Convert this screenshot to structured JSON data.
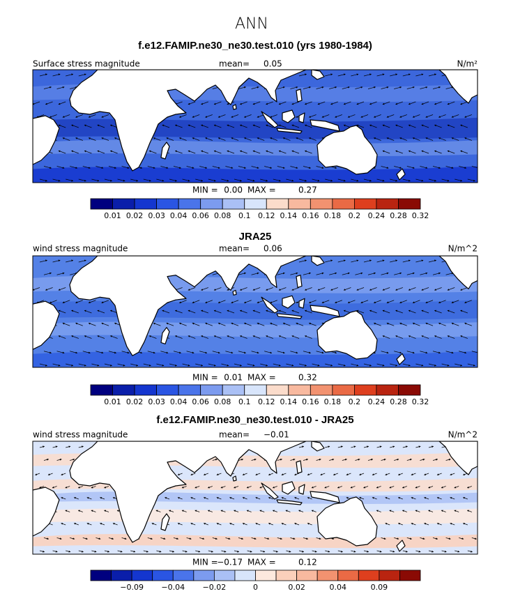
{
  "title": "ANN",
  "panels": [
    {
      "title": "f.e12.FAMIP.ne30_ne30.test.010 (yrs 1980-1984)",
      "left_label": "Surface stress magnitude",
      "mean_label": "mean=",
      "mean": "0.05",
      "units": "N/m²",
      "min_label": "MIN =",
      "min": "0.00",
      "max_label": "MAX =",
      "max": "0.27",
      "colorbar": {
        "colors": [
          "#00007f",
          "#0a1eaa",
          "#1436cf",
          "#2a55e3",
          "#4a74ea",
          "#7c9bef",
          "#aac0f5",
          "#d8e5fb",
          "#fbdccb",
          "#f8b99f",
          "#f29270",
          "#ea6a45",
          "#de3f1e",
          "#b92410",
          "#8a0a04"
        ],
        "labels": [
          "0.01",
          "0.02",
          "0.03",
          "0.04",
          "0.06",
          "0.08",
          "0.1",
          "0.12",
          "0.14",
          "0.16",
          "0.18",
          "0.2",
          "0.24",
          "0.28",
          "0.32"
        ]
      }
    },
    {
      "title": "JRA25",
      "left_label": "wind stress magnitude",
      "mean_label": "mean=",
      "mean": "0.06",
      "units": "N/m^2",
      "min_label": "MIN =",
      "min": "0.01",
      "max_label": "MAX =",
      "max": "0.32",
      "colorbar": {
        "colors": [
          "#00007f",
          "#0a1eaa",
          "#1436cf",
          "#2a55e3",
          "#4a74ea",
          "#7c9bef",
          "#aac0f5",
          "#d8e5fb",
          "#fbdccb",
          "#f8b99f",
          "#f29270",
          "#ea6a45",
          "#de3f1e",
          "#b92410",
          "#8a0a04"
        ],
        "labels": [
          "0.01",
          "0.02",
          "0.03",
          "0.04",
          "0.06",
          "0.08",
          "0.1",
          "0.12",
          "0.14",
          "0.16",
          "0.18",
          "0.2",
          "0.24",
          "0.28",
          "0.32"
        ]
      }
    },
    {
      "title": "f.e12.FAMIP.ne30_ne30.test.010 - JRA25",
      "left_label": "wind stress magnitude",
      "mean_label": "mean=",
      "mean": "−0.01",
      "units": "N/m^2",
      "min_label": "MIN =",
      "min": "−0.17",
      "max_label": "MAX =",
      "max": "0.12",
      "colorbar": {
        "colors": [
          "#00007f",
          "#0a1eaa",
          "#1436cf",
          "#2a55e3",
          "#4a74ea",
          "#7c9bef",
          "#aac0f5",
          "#d8e5fb",
          "#fde9de",
          "#fbd0bb",
          "#f8b99f",
          "#f29270",
          "#ea6a45",
          "#de3f1e",
          "#b92410",
          "#8a0a04"
        ],
        "labels": [
          null,
          "−0.09",
          null,
          "−0.04",
          null,
          "−0.02",
          null,
          "0",
          null,
          "0.02",
          null,
          "0.04",
          null,
          "0.09",
          null
        ]
      }
    }
  ]
}
